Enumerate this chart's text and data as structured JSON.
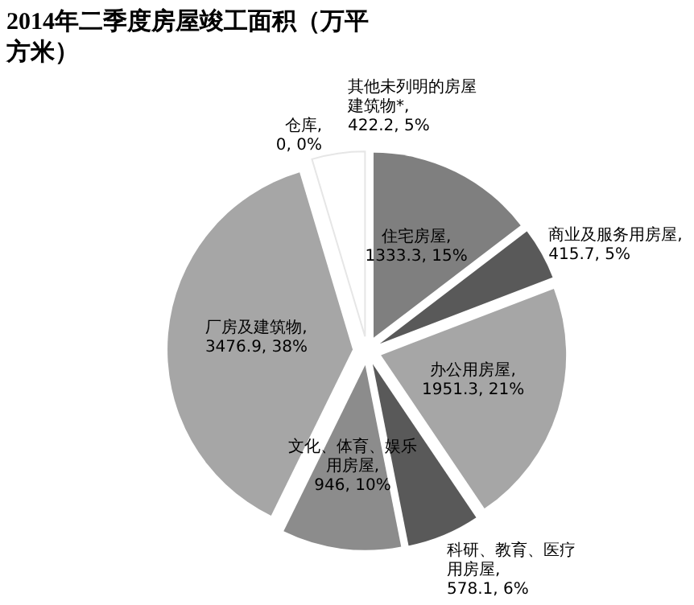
{
  "chart_data": {
    "type": "pie",
    "title": "2014年二季度房屋竣工面积（万平方米）",
    "categories": [
      "住宅房屋",
      "商业及服务用房屋",
      "办公用房屋",
      "科研、教育、医疗用房屋",
      "文化、体育、娱乐用房屋",
      "厂房及建筑物",
      "仓库",
      "其他未列明的房屋建筑物*"
    ],
    "values": [
      1333.3,
      415.7,
      1951.3,
      578.1,
      946,
      3476.9,
      0,
      422.2
    ],
    "value_labels": [
      ", 1333.3, 15%",
      ", 415.7, 5%",
      ", 1951.3, 21%",
      ", 578.1, 6%",
      ", 946, 10%",
      ", 3476.9, 38%",
      ", 0, 0%",
      ", 422.2, 5%"
    ],
    "colors": [
      "#7f7f7f",
      "#595959",
      "#a6a6a6",
      "#595959",
      "#8c8c8c",
      "#a6a6a6",
      "#bfbfbf",
      "#ffffff"
    ]
  }
}
